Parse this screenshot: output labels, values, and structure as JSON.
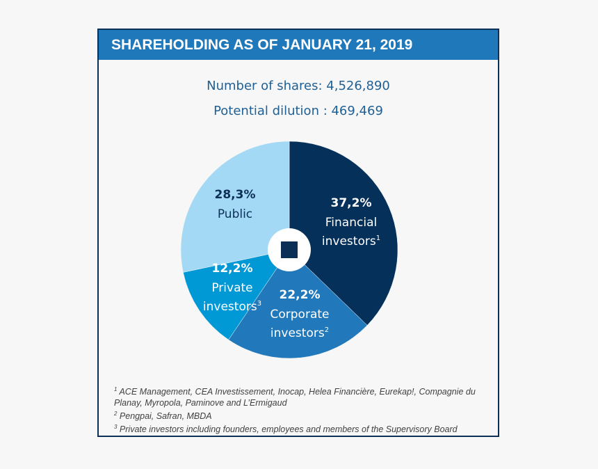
{
  "header": {
    "title": "SHAREHOLDING AS OF JANUARY 21, 2019"
  },
  "summary": {
    "shares": "Number of shares: 4,526,890",
    "dilution": "Potential dilution : 469,469"
  },
  "chart_data": {
    "type": "pie",
    "start": "top",
    "direction": "clockwise",
    "slices": [
      {
        "label": "Financial investors",
        "sup": "1",
        "value": 37.2,
        "value_label": "37,2%",
        "color": "#05305a",
        "text_color": "#ffffff"
      },
      {
        "label": "Corporate investors",
        "sup": "2",
        "value": 22.2,
        "value_label": "22,2%",
        "color": "#2178ba",
        "text_color": "#ffffff"
      },
      {
        "label": "Private investors",
        "sup": "3",
        "value": 12.2,
        "value_label": "12,2%",
        "color": "#0099d6",
        "text_color": "#ffffff"
      },
      {
        "label": "Public",
        "sup": "",
        "value": 28.3,
        "value_label": "28,3%",
        "color": "#a3d9f4",
        "text_color": "#0c2f57"
      }
    ]
  },
  "footnotes": [
    {
      "mark": "1",
      "text": " ACE Management, CEA Investissement, Inocap, Helea Financière, Eurekap!, Compagnie du Planay, Myropola, Paminove and L’Ermigaud"
    },
    {
      "mark": "2",
      "text": " Pengpai, Safran, MBDA"
    },
    {
      "mark": "3",
      "text": " Private investors including founders, employees and members of the Supervisory Board"
    }
  ]
}
